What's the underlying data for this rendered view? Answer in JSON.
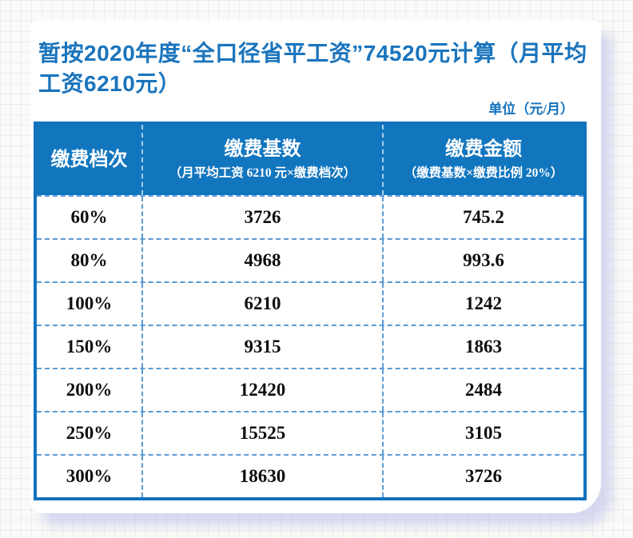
{
  "title": "暂按2020年度“全口径省平工资”74520元计算（月平均工资6210元）",
  "unit_note": "单位（元/月）",
  "table": {
    "columns": [
      {
        "label": "缴费档次",
        "sublabel": ""
      },
      {
        "label": "缴费基数",
        "sublabel": "（月平均工资 6210 元×缴费档次）"
      },
      {
        "label": "缴费金额",
        "sublabel": "（缴费基数×缴费比例 20%）"
      }
    ],
    "rows": [
      {
        "tier": "60%",
        "base": "3726",
        "amount": "745.2"
      },
      {
        "tier": "80%",
        "base": "4968",
        "amount": "993.6"
      },
      {
        "tier": "100%",
        "base": "6210",
        "amount": "1242"
      },
      {
        "tier": "150%",
        "base": "9315",
        "amount": "1863"
      },
      {
        "tier": "200%",
        "base": "12420",
        "amount": "2484"
      },
      {
        "tier": "250%",
        "base": "15525",
        "amount": "3105"
      },
      {
        "tier": "300%",
        "base": "18630",
        "amount": "3726"
      }
    ]
  },
  "colors": {
    "accent_blue": "#1b74bc",
    "header_bg": "#1276bf",
    "border_blue": "#1272bd",
    "divider_blue": "#5b9bd5",
    "body_text": "#0e0e0e",
    "shadow_lavender": "#babfe8"
  }
}
